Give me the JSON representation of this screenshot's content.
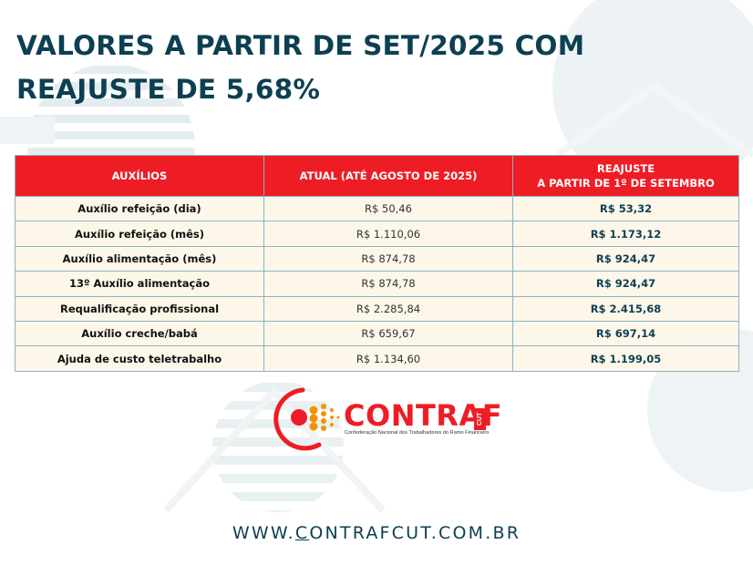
{
  "title": {
    "line1": "VALORES A PARTIR DE SET/2025 COM",
    "line2": "REAJUSTE DE 5,68%"
  },
  "table": {
    "headers": {
      "col1": "AUXÍLIOS",
      "col2": "ATUAL (ATÉ AGOSTO DE 2025)",
      "col3_line1": "REAJUSTE",
      "col3_line2": "A PARTIR DE 1º DE SETEMBRO"
    },
    "rows": [
      {
        "name": "Auxílio refeição (dia)",
        "current": "R$ 50,46",
        "new": "R$ 53,32"
      },
      {
        "name": "Auxílio refeição (mês)",
        "current": "R$ 1.110,06",
        "new": "R$ 1.173,12"
      },
      {
        "name": "Auxílio alimentação (mês)",
        "current": "R$ 874,78",
        "new": "R$ 924,47"
      },
      {
        "name": "13º Auxílio alimentação",
        "current": "R$ 874,78",
        "new": "R$ 924,47"
      },
      {
        "name": "Requalificação profissional",
        "current": "R$ 2.285,84",
        "new": "R$ 2.415,68"
      },
      {
        "name": "Auxílio creche/babá",
        "current": "R$ 659,67",
        "new": "R$ 697,14"
      },
      {
        "name": "Ajuda de custo teletrabalho",
        "current": "R$ 1.134,60",
        "new": "R$ 1.199,05"
      }
    ]
  },
  "logo": {
    "name": "CONTRAF",
    "badge": "CUT",
    "subtitle": "Confederação Nacional dos Trabalhadores do Ramo Financeiro"
  },
  "website": {
    "prefix": "WWW.",
    "underlined": "C",
    "rest": "ONTRAFCUT.COM.BR"
  },
  "colors": {
    "brand_red": "#ee1d25",
    "title_navy": "#0d3f52",
    "orange": "#f39200",
    "row_bg": "#fdf6e8"
  }
}
